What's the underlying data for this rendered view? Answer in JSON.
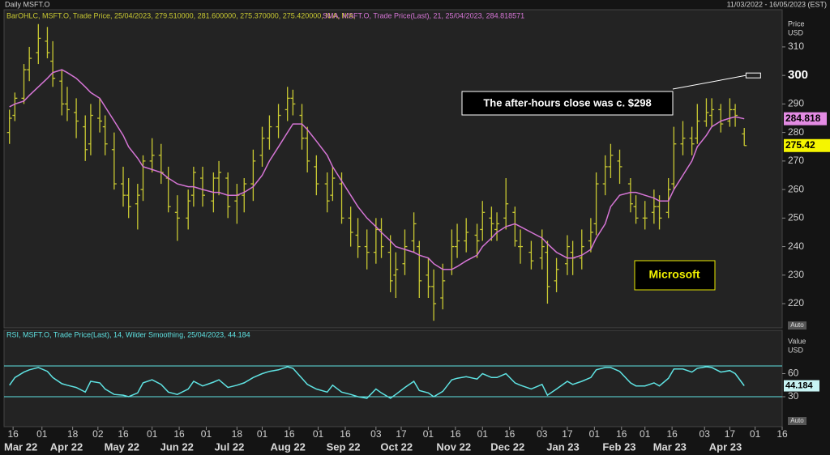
{
  "chart_data": [
    {
      "type": "ohlc",
      "title": "Daily MSFT.O",
      "date_range": "11/03/2022 - 16/05/2023 (EST)",
      "xlim": [
        "2022-03-11",
        "2023-05-16"
      ],
      "ylabel": "Price",
      "yunit": "USD",
      "ylim": [
        211.5,
        320.2
      ],
      "yticks": [
        220,
        230,
        240,
        250,
        260,
        270,
        280,
        290,
        300,
        310
      ],
      "ytick_bold": 300,
      "grid": false,
      "x": [
        "2022-03-14",
        "2022-03-17",
        "2022-03-22",
        "2022-03-25",
        "2022-03-30",
        "2022-04-04",
        "2022-04-07",
        "2022-04-12",
        "2022-04-15",
        "2022-04-20",
        "2022-04-25",
        "2022-04-28",
        "2022-05-03",
        "2022-05-06",
        "2022-05-11",
        "2022-05-16",
        "2022-05-19",
        "2022-05-24",
        "2022-05-27",
        "2022-06-01",
        "2022-06-06",
        "2022-06-10",
        "2022-06-15",
        "2022-06-21",
        "2022-06-24",
        "2022-06-29",
        "2022-07-05",
        "2022-07-08",
        "2022-07-13",
        "2022-07-18",
        "2022-07-22",
        "2022-07-27",
        "2022-08-01",
        "2022-08-05",
        "2022-08-10",
        "2022-08-15",
        "2022-08-18",
        "2022-08-23",
        "2022-08-26",
        "2022-08-31",
        "2022-09-06",
        "2022-09-09",
        "2022-09-14",
        "2022-09-19",
        "2022-09-23",
        "2022-09-28",
        "2022-10-03",
        "2022-10-06",
        "2022-10-11",
        "2022-10-14",
        "2022-10-19",
        "2022-10-24",
        "2022-10-27",
        "2022-11-01",
        "2022-11-04",
        "2022-11-09",
        "2022-11-14",
        "2022-11-17",
        "2022-11-22",
        "2022-11-28",
        "2022-12-01",
        "2022-12-06",
        "2022-12-09",
        "2022-12-14",
        "2022-12-19",
        "2022-12-22",
        "2022-12-28",
        "2023-01-03",
        "2023-01-06",
        "2023-01-11",
        "2023-01-17",
        "2023-01-20",
        "2023-01-25",
        "2023-01-30",
        "2023-02-02",
        "2023-02-07",
        "2023-02-10",
        "2023-02-15",
        "2023-02-21",
        "2023-02-24",
        "2023-03-01",
        "2023-03-06",
        "2023-03-09",
        "2023-03-14",
        "2023-03-17",
        "2023-03-22",
        "2023-03-27",
        "2023-03-30",
        "2023-04-04",
        "2023-04-07",
        "2023-04-12",
        "2023-04-17",
        "2023-04-20",
        "2023-04-25"
      ],
      "ohlc": {
        "name": "BarOHLC, MSFT.O, Trade Price, 25/04/2023, 279.510000, 281.600000, 275.370000, 275.420000, N/A, N/A,",
        "color": "#c8c832",
        "open": [
          280,
          286,
          292,
          302,
          308,
          312,
          305,
          298,
          290,
          287,
          282,
          276,
          285,
          282,
          274,
          262,
          258,
          255,
          260,
          270,
          272,
          264,
          252,
          250,
          258,
          264,
          256,
          264,
          264,
          256,
          258,
          262,
          272,
          278,
          282,
          288,
          292,
          286,
          278,
          268,
          262,
          258,
          262,
          250,
          244,
          240,
          238,
          246,
          238,
          230,
          234,
          242,
          240,
          230,
          226,
          222,
          232,
          240,
          242,
          244,
          246,
          250,
          246,
          250,
          252,
          240,
          238,
          236,
          238,
          228,
          234,
          238,
          236,
          242,
          248,
          262,
          268,
          270,
          262,
          254,
          250,
          252,
          254,
          252,
          262,
          276,
          278,
          278,
          284,
          286,
          288,
          284,
          288,
          279.51
        ],
        "high": [
          288,
          294,
          304,
          310,
          318,
          317,
          312,
          302,
          296,
          292,
          286,
          290,
          292,
          286,
          280,
          268,
          264,
          262,
          272,
          278,
          276,
          268,
          258,
          260,
          268,
          268,
          266,
          270,
          266,
          262,
          264,
          274,
          282,
          286,
          290,
          296,
          295,
          290,
          282,
          272,
          266,
          268,
          266,
          254,
          250,
          246,
          250,
          250,
          244,
          238,
          246,
          252,
          242,
          236,
          232,
          234,
          246,
          248,
          250,
          248,
          256,
          254,
          252,
          264,
          254,
          246,
          242,
          246,
          242,
          236,
          244,
          242,
          246,
          250,
          266,
          272,
          276,
          274,
          264,
          258,
          256,
          260,
          258,
          264,
          282,
          284,
          282,
          290,
          292,
          292,
          290,
          292,
          290,
          281.6
        ],
        "low": [
          276,
          284,
          290,
          298,
          304,
          306,
          296,
          286,
          284,
          278,
          270,
          272,
          280,
          272,
          260,
          254,
          250,
          246,
          256,
          266,
          262,
          252,
          242,
          246,
          254,
          254,
          252,
          258,
          250,
          248,
          252,
          256,
          268,
          274,
          278,
          284,
          286,
          274,
          266,
          258,
          252,
          256,
          248,
          240,
          236,
          232,
          234,
          236,
          224,
          222,
          230,
          238,
          222,
          222,
          214,
          218,
          230,
          236,
          238,
          236,
          242,
          242,
          242,
          246,
          240,
          234,
          232,
          232,
          220,
          224,
          230,
          230,
          232,
          238,
          244,
          258,
          264,
          262,
          252,
          248,
          246,
          248,
          246,
          250,
          260,
          272,
          272,
          276,
          282,
          282,
          280,
          282,
          282,
          275.37
        ],
        "close": [
          285,
          292,
          302,
          306,
          313,
          308,
          299,
          290,
          288,
          284,
          274,
          286,
          284,
          276,
          262,
          258,
          254,
          258,
          270,
          272,
          266,
          254,
          250,
          256,
          266,
          258,
          264,
          266,
          254,
          258,
          262,
          270,
          278,
          282,
          286,
          292,
          290,
          278,
          270,
          262,
          256,
          264,
          250,
          245,
          240,
          238,
          246,
          240,
          228,
          232,
          240,
          248,
          228,
          226,
          220,
          228,
          240,
          242,
          245,
          242,
          252,
          248,
          248,
          255,
          242,
          240,
          235,
          240,
          226,
          232,
          240,
          236,
          240,
          245,
          262,
          268,
          272,
          268,
          255,
          250,
          250,
          254,
          250,
          260,
          276,
          278,
          276,
          284,
          287,
          288,
          283,
          288,
          286,
          275.42
        ],
        "last_label": "275.42"
      },
      "series": [
        {
          "name": "SMA, MSFT.O, Trade Price(Last),  21, 25/04/2023, 284.818571",
          "color": "#d575d5",
          "values": [
            289,
            290,
            291,
            293,
            296,
            299,
            301,
            302,
            301,
            299,
            296,
            294,
            292,
            289,
            284,
            279,
            275,
            271,
            268,
            267,
            266,
            264,
            262,
            261,
            261,
            260,
            259,
            259,
            258,
            258,
            259,
            261,
            265,
            270,
            275,
            280,
            283,
            283,
            281,
            277,
            272,
            268,
            263,
            258,
            254,
            250,
            247,
            245,
            242,
            240,
            239,
            238,
            237,
            236,
            234,
            232,
            232,
            233,
            235,
            237,
            240,
            243,
            245,
            247,
            248,
            247,
            245,
            243,
            241,
            238,
            236,
            236,
            237,
            239,
            243,
            248,
            254,
            258,
            259,
            259,
            258,
            257,
            256,
            256,
            260,
            265,
            270,
            275,
            279,
            282,
            284,
            285,
            285.5,
            284.818571
          ],
          "last_label": "284.818"
        }
      ],
      "annotations": [
        {
          "text": "The after-hours close was c. $298",
          "x": "2023-04-30",
          "value": 300
        },
        {
          "text": "Microsoft"
        }
      ]
    },
    {
      "type": "line",
      "xlim": [
        "2022-03-11",
        "2023-05-16"
      ],
      "ylabel": "Value",
      "yunit": "USD",
      "ylim": [
        -6.8,
        116.3
      ],
      "yticks": [
        30,
        60
      ],
      "levels": [
        70,
        30
      ],
      "x": [
        "2022-03-14",
        "2022-03-17",
        "2022-03-22",
        "2022-03-25",
        "2022-03-30",
        "2022-04-04",
        "2022-04-07",
        "2022-04-12",
        "2022-04-15",
        "2022-04-20",
        "2022-04-25",
        "2022-04-28",
        "2022-05-03",
        "2022-05-06",
        "2022-05-11",
        "2022-05-16",
        "2022-05-19",
        "2022-05-24",
        "2022-05-27",
        "2022-06-01",
        "2022-06-06",
        "2022-06-10",
        "2022-06-15",
        "2022-06-21",
        "2022-06-24",
        "2022-06-29",
        "2022-07-05",
        "2022-07-08",
        "2022-07-13",
        "2022-07-18",
        "2022-07-22",
        "2022-07-27",
        "2022-08-01",
        "2022-08-05",
        "2022-08-10",
        "2022-08-15",
        "2022-08-18",
        "2022-08-23",
        "2022-08-26",
        "2022-08-31",
        "2022-09-06",
        "2022-09-09",
        "2022-09-14",
        "2022-09-19",
        "2022-09-23",
        "2022-09-28",
        "2022-10-03",
        "2022-10-06",
        "2022-10-11",
        "2022-10-14",
        "2022-10-19",
        "2022-10-24",
        "2022-10-27",
        "2022-11-01",
        "2022-11-04",
        "2022-11-09",
        "2022-11-14",
        "2022-11-17",
        "2022-11-22",
        "2022-11-28",
        "2022-12-01",
        "2022-12-06",
        "2022-12-09",
        "2022-12-14",
        "2022-12-19",
        "2022-12-22",
        "2022-12-28",
        "2023-01-03",
        "2023-01-06",
        "2023-01-11",
        "2023-01-17",
        "2023-01-20",
        "2023-01-25",
        "2023-01-30",
        "2023-02-02",
        "2023-02-07",
        "2023-02-10",
        "2023-02-15",
        "2023-02-21",
        "2023-02-24",
        "2023-03-01",
        "2023-03-06",
        "2023-03-09",
        "2023-03-14",
        "2023-03-17",
        "2023-03-22",
        "2023-03-27",
        "2023-03-30",
        "2023-04-04",
        "2023-04-07",
        "2023-04-12",
        "2023-04-17",
        "2023-04-20",
        "2023-04-25"
      ],
      "series": [
        {
          "name": "RSI, MSFT.O, Trade Price(Last), 14, Wilder Smoothing, 25/04/2023, 44.184",
          "color": "#5fe3e3",
          "values": [
            45,
            55,
            62,
            65,
            68,
            63,
            55,
            47,
            45,
            42,
            36,
            50,
            48,
            40,
            33,
            32,
            30,
            35,
            48,
            52,
            46,
            36,
            33,
            40,
            50,
            44,
            49,
            52,
            42,
            45,
            48,
            55,
            60,
            63,
            65,
            69,
            67,
            54,
            46,
            40,
            36,
            45,
            36,
            33,
            30,
            28,
            40,
            35,
            28,
            33,
            42,
            50,
            38,
            35,
            30,
            37,
            52,
            54,
            56,
            53,
            60,
            55,
            55,
            60,
            48,
            45,
            40,
            46,
            32,
            40,
            50,
            46,
            50,
            55,
            65,
            68,
            68,
            63,
            48,
            44,
            44,
            48,
            44,
            54,
            66,
            66,
            62,
            67,
            69,
            68,
            62,
            64,
            60,
            44.184
          ],
          "last_label": "44.184"
        }
      ],
      "xticks": [
        {
          "value": "2022-03-16",
          "label": "16"
        },
        {
          "value": "2022-04-01",
          "label": "01"
        },
        {
          "value": "2022-04-18",
          "label": "18"
        },
        {
          "value": "2022-05-02",
          "label": "02"
        },
        {
          "value": "2022-05-16",
          "label": "16"
        },
        {
          "value": "2022-06-01",
          "label": "01"
        },
        {
          "value": "2022-06-16",
          "label": "16"
        },
        {
          "value": "2022-07-01",
          "label": "01"
        },
        {
          "value": "2022-07-18",
          "label": "18"
        },
        {
          "value": "2022-08-01",
          "label": "01"
        },
        {
          "value": "2022-08-16",
          "label": "16"
        },
        {
          "value": "2022-09-01",
          "label": "01"
        },
        {
          "value": "2022-09-16",
          "label": "16"
        },
        {
          "value": "2022-10-03",
          "label": "03"
        },
        {
          "value": "2022-10-17",
          "label": "17"
        },
        {
          "value": "2022-11-01",
          "label": "01"
        },
        {
          "value": "2022-11-16",
          "label": "16"
        },
        {
          "value": "2022-12-01",
          "label": "01"
        },
        {
          "value": "2022-12-16",
          "label": "16"
        },
        {
          "value": "2023-01-03",
          "label": "03"
        },
        {
          "value": "2023-01-17",
          "label": "17"
        },
        {
          "value": "2023-02-01",
          "label": "01"
        },
        {
          "value": "2023-02-16",
          "label": "16"
        },
        {
          "value": "2023-03-01",
          "label": "01"
        },
        {
          "value": "2023-03-16",
          "label": "16"
        },
        {
          "value": "2023-04-03",
          "label": "03"
        },
        {
          "value": "2023-04-17",
          "label": "17"
        },
        {
          "value": "2023-05-01",
          "label": "01"
        },
        {
          "value": "2023-05-16",
          "label": "16"
        }
      ],
      "months": [
        {
          "value": "2022-03",
          "label": "Mar 22"
        },
        {
          "value": "2022-04",
          "label": "Apr 22"
        },
        {
          "value": "2022-05",
          "label": "May 22"
        },
        {
          "value": "2022-06",
          "label": "Jun 22"
        },
        {
          "value": "2022-07",
          "label": "Jul 22"
        },
        {
          "value": "2022-08",
          "label": "Aug 22"
        },
        {
          "value": "2022-09",
          "label": "Sep 22"
        },
        {
          "value": "2022-10",
          "label": "Oct 22"
        },
        {
          "value": "2022-11",
          "label": "Nov 22"
        },
        {
          "value": "2022-12",
          "label": "Dec 22"
        },
        {
          "value": "2023-01",
          "label": "Jan 23"
        },
        {
          "value": "2023-02",
          "label": "Feb 23"
        },
        {
          "value": "2023-03",
          "label": "Mar 23"
        },
        {
          "value": "2023-04",
          "label": "Apr 23"
        }
      ],
      "button": "Auto"
    }
  ]
}
